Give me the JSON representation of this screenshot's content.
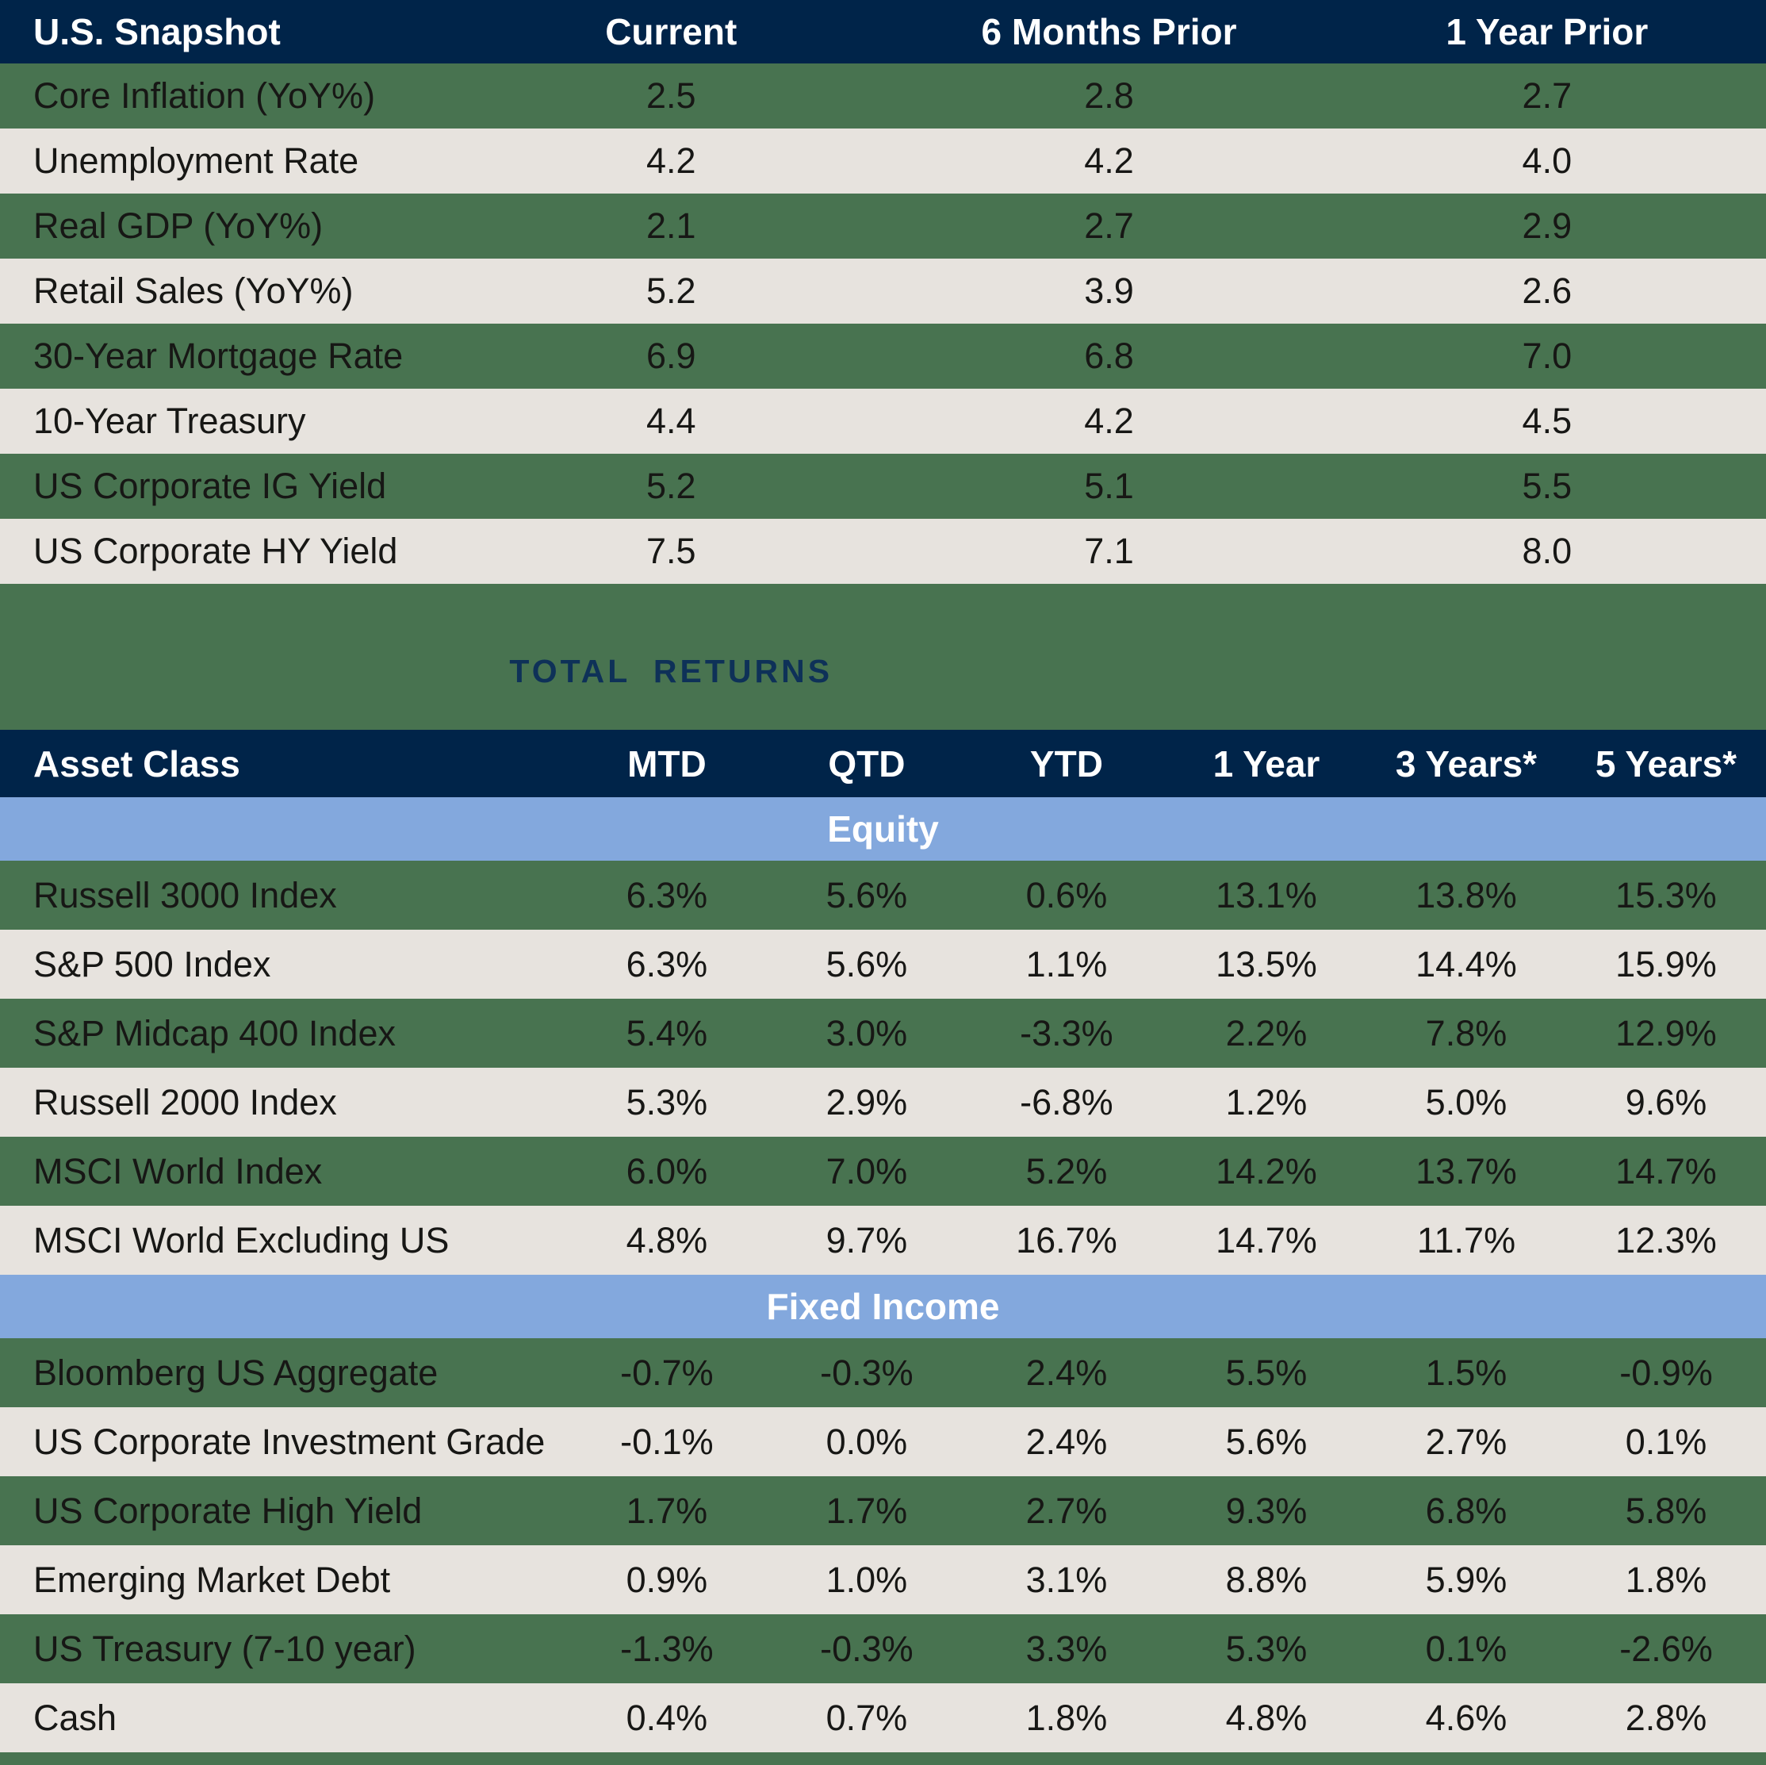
{
  "colors": {
    "header_navy": "#002449",
    "row_green": "#487350",
    "row_beige": "#E7E3DE",
    "section_blue": "#83A8DD",
    "title_navy": "#0E3158",
    "header_text": "#ffffff",
    "body_text": "#171715"
  },
  "snapshot": {
    "title": "U.S. Snapshot",
    "columns": [
      "Current",
      "6 Months Prior",
      "1 Year Prior"
    ],
    "rows": [
      {
        "label": "Core Inflation (YoY%)",
        "values": [
          "2.5",
          "2.8",
          "2.7"
        ]
      },
      {
        "label": "Unemployment Rate",
        "values": [
          "4.2",
          "4.2",
          "4.0"
        ]
      },
      {
        "label": "Real GDP (YoY%)",
        "values": [
          "2.1",
          "2.7",
          "2.9"
        ]
      },
      {
        "label": "Retail Sales (YoY%)",
        "values": [
          "5.2",
          "3.9",
          "2.6"
        ]
      },
      {
        "label": "30-Year Mortgage Rate",
        "values": [
          "6.9",
          "6.8",
          "7.0"
        ]
      },
      {
        "label": "10-Year Treasury",
        "values": [
          "4.4",
          "4.2",
          "4.5"
        ]
      },
      {
        "label": "US Corporate IG Yield",
        "values": [
          "5.2",
          "5.1",
          "5.5"
        ]
      },
      {
        "label": "US Corporate HY Yield",
        "values": [
          "7.5",
          "7.1",
          "8.0"
        ]
      }
    ]
  },
  "returns": {
    "title": "TOTAL RETURNS",
    "label_column": "Asset Class",
    "columns": [
      "MTD",
      "QTD",
      "YTD",
      "1 Year",
      "3 Years*",
      "5 Years*"
    ],
    "sections": [
      {
        "name": "Equity",
        "rows": [
          {
            "label": "Russell 3000 Index",
            "values": [
              "6.3%",
              "5.6%",
              "0.6%",
              "13.1%",
              "13.8%",
              "15.3%"
            ]
          },
          {
            "label": "S&P 500 Index",
            "values": [
              "6.3%",
              "5.6%",
              "1.1%",
              "13.5%",
              "14.4%",
              "15.9%"
            ]
          },
          {
            "label": "S&P Midcap 400 Index",
            "values": [
              "5.4%",
              "3.0%",
              "-3.3%",
              "2.2%",
              "7.8%",
              "12.9%"
            ]
          },
          {
            "label": "Russell 2000 Index",
            "values": [
              "5.3%",
              "2.9%",
              "-6.8%",
              "1.2%",
              "5.0%",
              "9.6%"
            ]
          },
          {
            "label": "MSCI World Index",
            "values": [
              "6.0%",
              "7.0%",
              "5.2%",
              "14.2%",
              "13.7%",
              "14.7%"
            ]
          },
          {
            "label": "MSCI World Excluding US",
            "values": [
              "4.8%",
              "9.7%",
              "16.7%",
              "14.7%",
              "11.7%",
              "12.3%"
            ]
          }
        ]
      },
      {
        "name": "Fixed Income",
        "rows": [
          {
            "label": "Bloomberg US Aggregate",
            "values": [
              "-0.7%",
              "-0.3%",
              "2.4%",
              "5.5%",
              "1.5%",
              "-0.9%"
            ]
          },
          {
            "label": "US Corporate Investment Grade",
            "values": [
              "-0.1%",
              "0.0%",
              "2.4%",
              "5.6%",
              "2.7%",
              "0.1%"
            ]
          },
          {
            "label": "US Corporate High Yield",
            "values": [
              "1.7%",
              "1.7%",
              "2.7%",
              "9.3%",
              "6.8%",
              "5.8%"
            ]
          },
          {
            "label": "Emerging Market Debt",
            "values": [
              "0.9%",
              "1.0%",
              "3.1%",
              "8.8%",
              "5.9%",
              "1.8%"
            ]
          },
          {
            "label": "US Treasury (7-10 year)",
            "values": [
              "-1.3%",
              "-0.3%",
              "3.3%",
              "5.3%",
              "0.1%",
              "-2.6%"
            ]
          },
          {
            "label": "Cash",
            "values": [
              "0.4%",
              "0.7%",
              "1.8%",
              "4.8%",
              "4.6%",
              "2.8%"
            ]
          }
        ]
      }
    ]
  }
}
